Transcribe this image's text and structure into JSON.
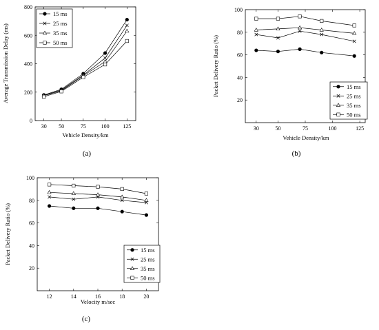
{
  "chart_data": [
    {
      "type": "line",
      "caption": "(a)",
      "xlabel": "Vehicle Density/km",
      "ylabel": "Average Transmission Delay (ms)",
      "x": [
        30,
        50,
        75,
        100,
        125
      ],
      "xticks": [
        "30",
        "50",
        "75",
        "100",
        "125"
      ],
      "yticks": [
        "0",
        "200",
        "400",
        "600",
        "800"
      ],
      "xlim": [
        20,
        135
      ],
      "ylim": [
        0,
        800
      ],
      "legend_position": "top-left",
      "grid": false,
      "series": [
        {
          "name": "15 ms",
          "marker": "filled-circle",
          "values": [
            180,
            220,
            330,
            475,
            710
          ]
        },
        {
          "name": "25 ms",
          "marker": "x",
          "values": [
            178,
            215,
            320,
            440,
            670
          ]
        },
        {
          "name": "35 ms",
          "marker": "triangle",
          "values": [
            175,
            210,
            315,
            415,
            630
          ]
        },
        {
          "name": "50 ms",
          "marker": "square",
          "values": [
            168,
            205,
            305,
            395,
            560
          ]
        }
      ]
    },
    {
      "type": "line",
      "caption": "(b)",
      "xlabel": "Vehicle Density/km",
      "ylabel": "Packet Delivery Ratio (%)",
      "x": [
        30,
        50,
        70,
        90,
        120
      ],
      "xticks": [
        "30",
        "50",
        "75",
        "100",
        "125"
      ],
      "xtick_values": [
        30,
        50,
        75,
        100,
        125
      ],
      "yticks": [
        "20",
        "40",
        "60",
        "80",
        "100"
      ],
      "xlim": [
        20,
        130
      ],
      "ylim": [
        0,
        100
      ],
      "legend_position": "bottom-right",
      "grid": false,
      "series": [
        {
          "name": "15 ms",
          "marker": "filled-circle",
          "values": [
            64,
            63,
            65,
            62,
            59
          ]
        },
        {
          "name": "25 ms",
          "marker": "x",
          "values": [
            78,
            75,
            81,
            78,
            72
          ]
        },
        {
          "name": "35 ms",
          "marker": "triangle",
          "values": [
            82,
            83,
            84,
            82,
            79
          ]
        },
        {
          "name": "50 ms",
          "marker": "square",
          "values": [
            92,
            92,
            94,
            90,
            86
          ]
        }
      ]
    },
    {
      "type": "line",
      "caption": "(c)",
      "xlabel": "Velocity m/sec",
      "ylabel": "Packet Delivery Ratio (%)",
      "x": [
        12,
        14,
        16,
        18,
        20
      ],
      "xticks": [
        "12",
        "14",
        "16",
        "18",
        "20"
      ],
      "yticks": [
        "20",
        "40",
        "60",
        "80",
        "100"
      ],
      "xlim": [
        11,
        21
      ],
      "ylim": [
        0,
        100
      ],
      "legend_position": "bottom-right",
      "grid": false,
      "series": [
        {
          "name": "15 ms",
          "marker": "filled-circle",
          "values": [
            75,
            73,
            73,
            70,
            67
          ]
        },
        {
          "name": "25 ms",
          "marker": "x",
          "values": [
            83,
            81,
            83,
            80,
            78
          ]
        },
        {
          "name": "35 ms",
          "marker": "triangle",
          "values": [
            87,
            86,
            85,
            83,
            80
          ]
        },
        {
          "name": "50 ms",
          "marker": "square",
          "values": [
            94,
            93,
            92,
            90,
            86
          ]
        }
      ]
    }
  ]
}
